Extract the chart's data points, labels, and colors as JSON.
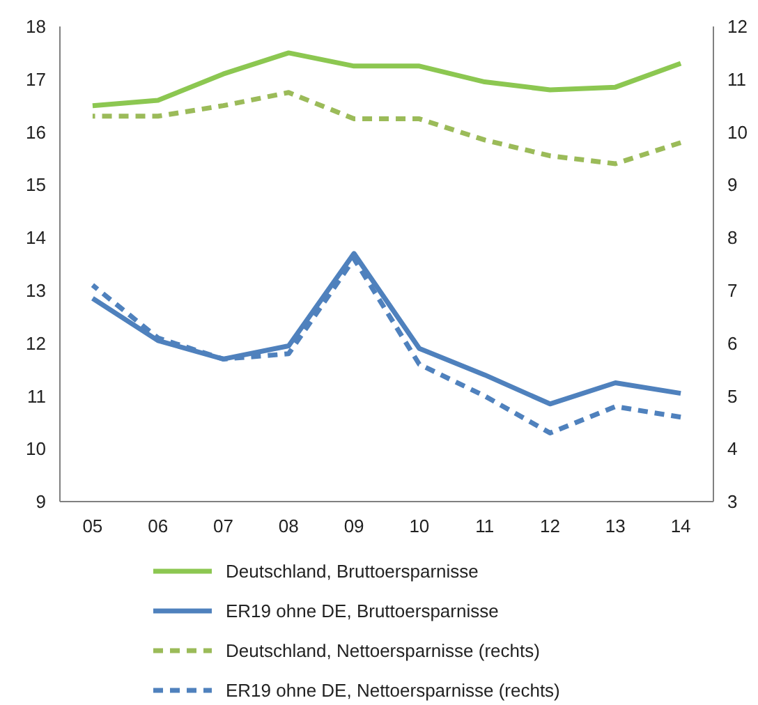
{
  "chart_data": {
    "type": "line",
    "categories": [
      "05",
      "06",
      "07",
      "08",
      "09",
      "10",
      "11",
      "12",
      "13",
      "14"
    ],
    "series": [
      {
        "name": "Deutschland, Bruttoersparnisse",
        "color": "#8cc751",
        "values": [
          16.5,
          16.6,
          17.1,
          17.5,
          17.25,
          17.25,
          16.95,
          16.8,
          16.85,
          17.3
        ],
        "line_style": "solid"
      },
      {
        "name": "ER19 ohne DE, Bruttoersparnisse",
        "color": "#4f81bd",
        "values": [
          12.85,
          12.05,
          11.7,
          11.95,
          13.7,
          11.9,
          11.4,
          10.85,
          11.25,
          11.05
        ],
        "line_style": "solid"
      },
      {
        "name": "Deutschland, Nettoersparnisse (rechts)",
        "color": "#9bbb59",
        "values": [
          10.3,
          10.3,
          10.5,
          10.75,
          10.25,
          10.25,
          9.85,
          9.55,
          9.4,
          9.8
        ],
        "line_style": "dashed",
        "axis": "y2"
      },
      {
        "name": "ER19 ohne DE, Nettoersparnisse (rechts)",
        "color": "#4f81bd",
        "values": [
          7.1,
          6.1,
          5.7,
          5.8,
          7.6,
          5.6,
          5.0,
          4.3,
          4.8,
          4.6
        ],
        "line_style": "dashed",
        "axis": "y2"
      }
    ],
    "ylim": [
      9,
      18
    ],
    "yticks": [
      9,
      10,
      11,
      12,
      13,
      14,
      15,
      16,
      17,
      18
    ],
    "y2lim": [
      3,
      12
    ],
    "y2ticks": [
      3,
      4,
      5,
      6,
      7,
      8,
      9,
      10,
      11,
      12
    ],
    "grid": false,
    "legend": "bottom",
    "marker": "none"
  }
}
